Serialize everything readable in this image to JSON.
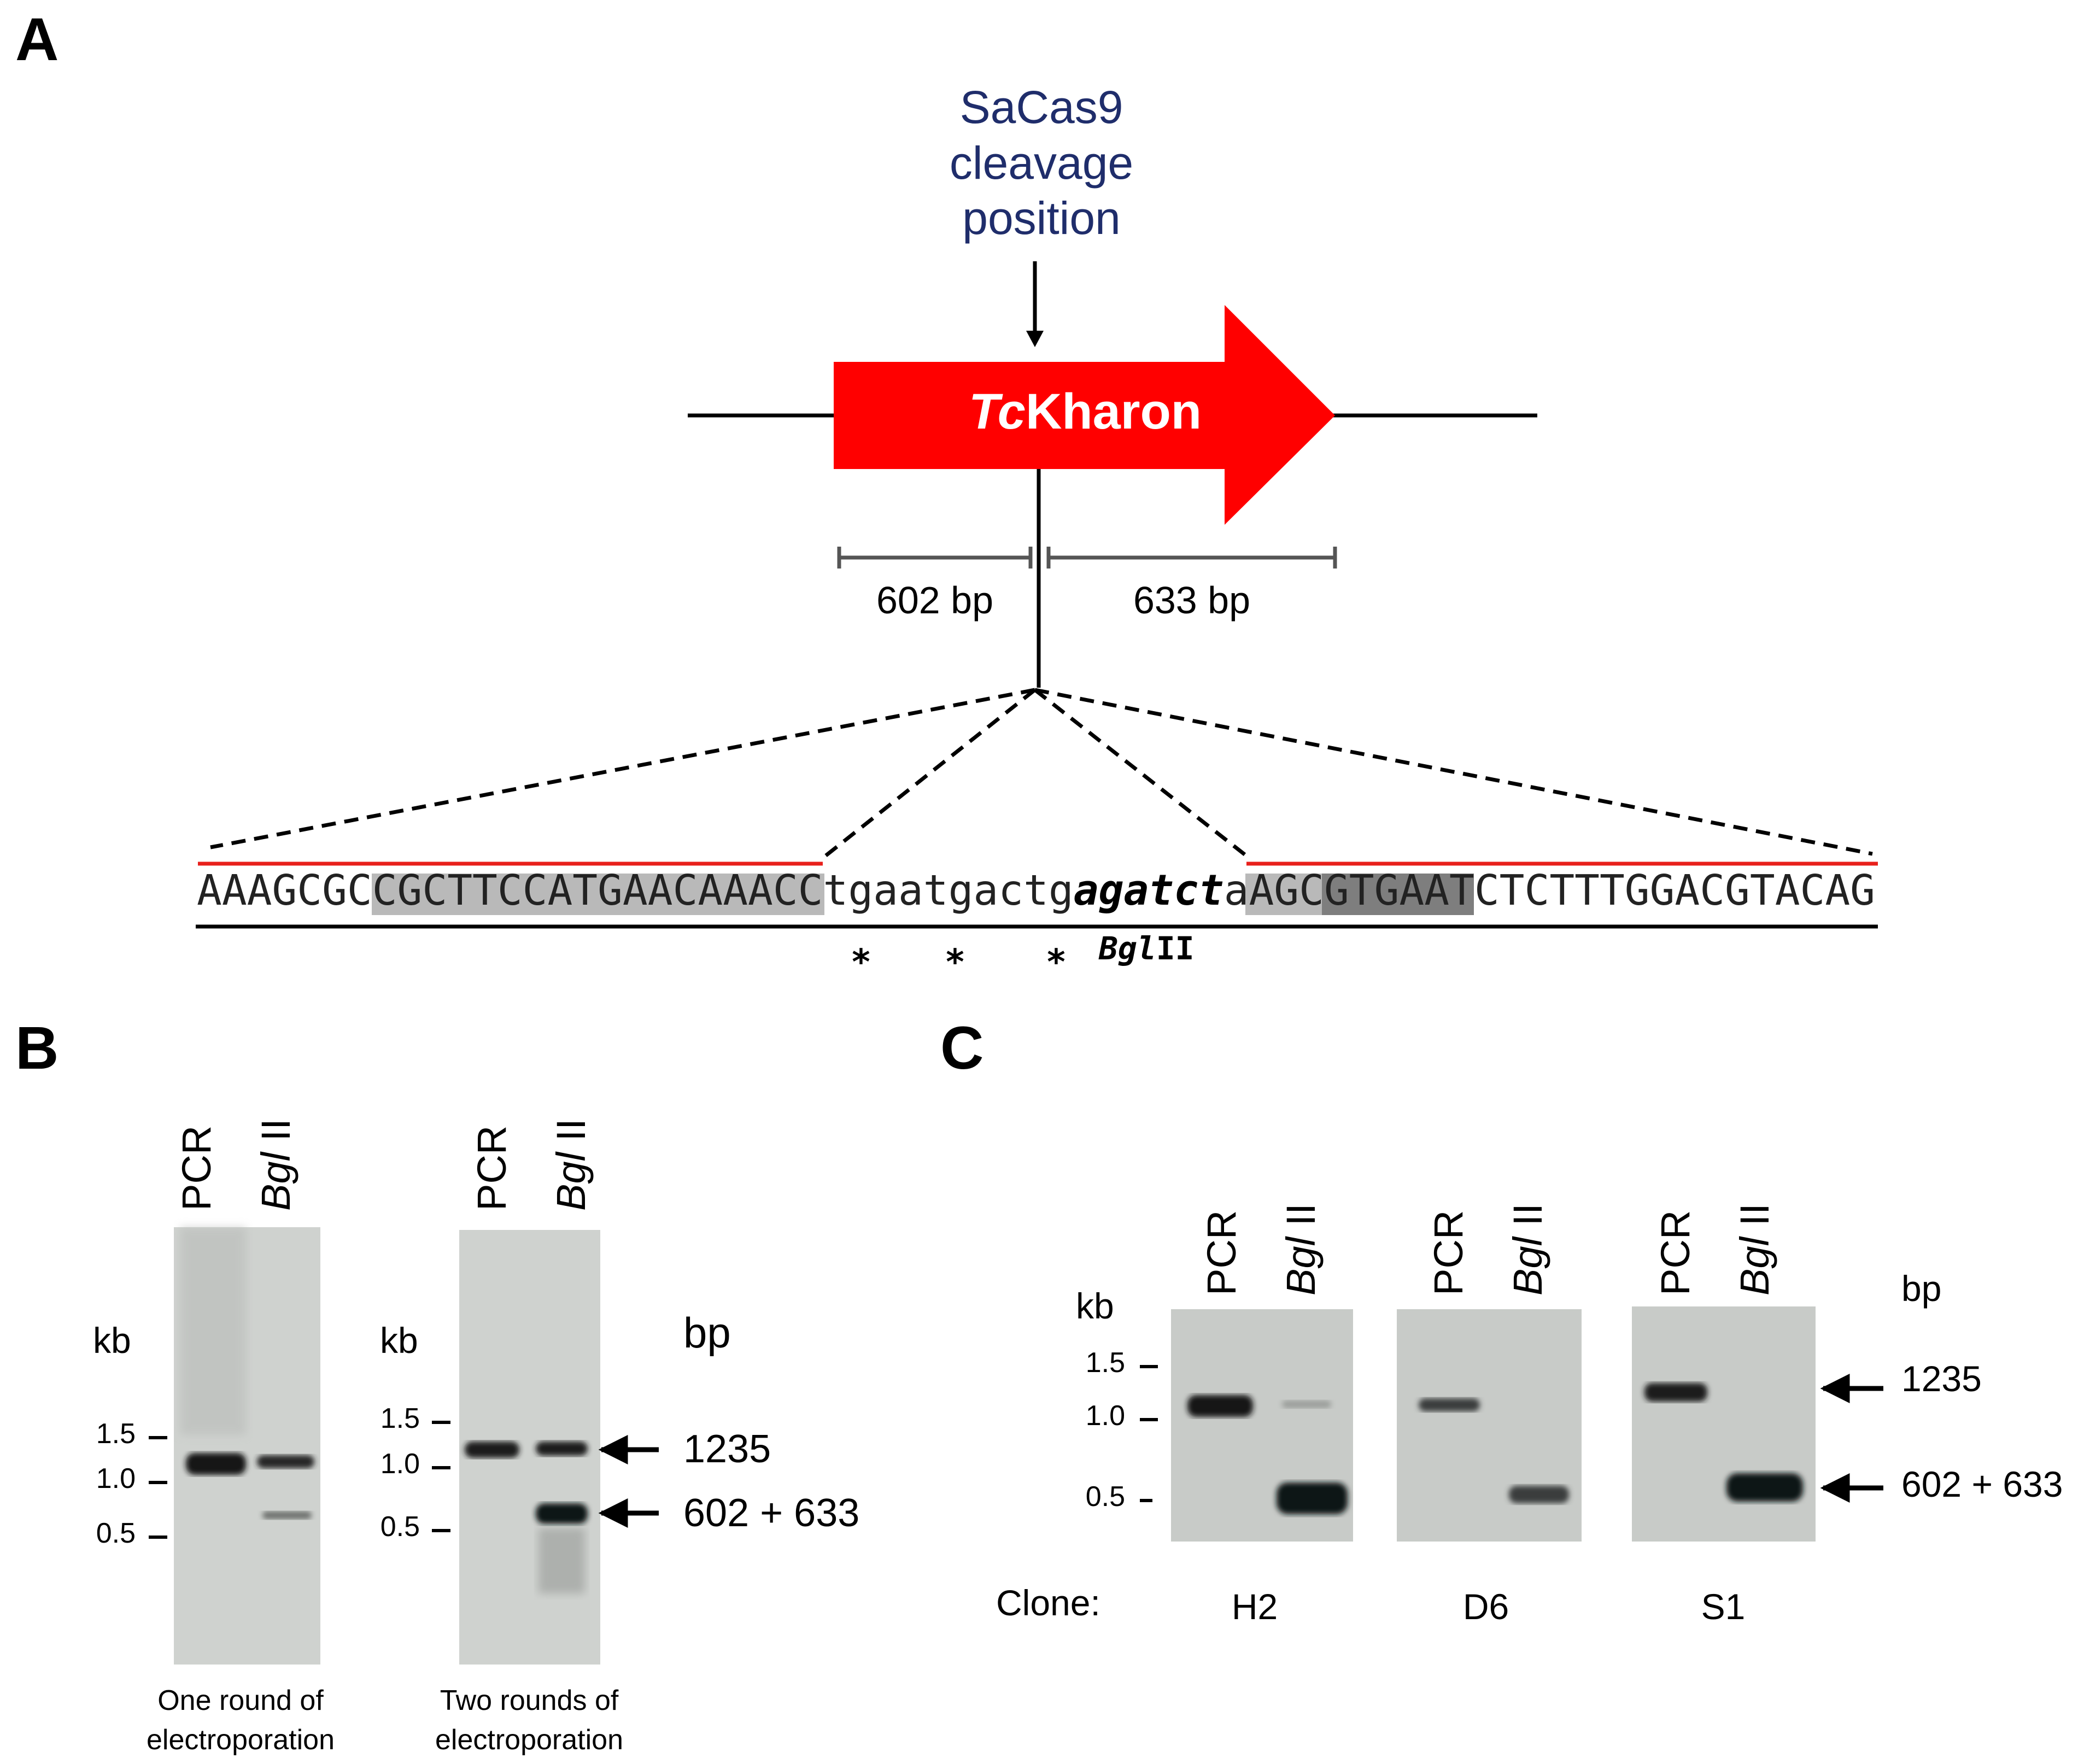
{
  "panels": {
    "a": {
      "letter": "A",
      "cleavage_label_lines": [
        "SaCas9",
        "cleavage",
        "position"
      ],
      "gene": {
        "italic": "Tc",
        "regular": "Kharon"
      },
      "fragments": {
        "left": "602 bp",
        "right": "633 bp"
      },
      "sequence": {
        "seg1": "AAAGCGC",
        "seg2_highlight": "CGCTTCCATGAACAAACC",
        "seg3": "tgaatgactg",
        "seg4_bold_italic": "agatct",
        "seg5": "a",
        "seg6_highlight": "AGC",
        "seg7_dark_highlight": "GTGAAT",
        "seg8": "CTCTTTGGACGTACAG"
      },
      "asterisks": [
        "*",
        "*",
        "*"
      ],
      "enzyme_label": {
        "italic": "Bgl",
        "regular": "II"
      }
    },
    "b": {
      "letter": "B",
      "lane_labels": {
        "pcr": "PCR",
        "enzyme_italic": "Bgl",
        "enzyme_regular": " II"
      },
      "unit_kb": "kb",
      "unit_bp": "bp",
      "markers": [
        "1.5",
        "1.0",
        "0.5"
      ],
      "band_labels": [
        "1235",
        "602 + 633"
      ],
      "gel1_caption": [
        "One round of",
        "electroporation"
      ],
      "gel2_caption": [
        "Two rounds of",
        "electroporation"
      ]
    },
    "c": {
      "letter": "C",
      "lane_labels": {
        "pcr": "PCR",
        "enzyme_italic": "Bgl",
        "enzyme_regular": " II"
      },
      "unit_kb": "kb",
      "unit_bp": "bp",
      "markers": [
        "1.5",
        "1.0",
        "0.5"
      ],
      "band_labels": [
        "1235",
        "602 + 633"
      ],
      "clone_label": "Clone:",
      "clones": [
        "H2",
        "D6",
        "S1"
      ]
    }
  },
  "colors": {
    "cleavage_label": "#1f2d6b",
    "gene_arrow": "#ff0000",
    "homology_arm_line": "#e8201c",
    "sequence_highlight": "#b9b9b9",
    "sequence_dark_highlight": "#7e7e7e",
    "gel_background": "#cfd2cf",
    "gel_band": "#1a1c1c"
  }
}
